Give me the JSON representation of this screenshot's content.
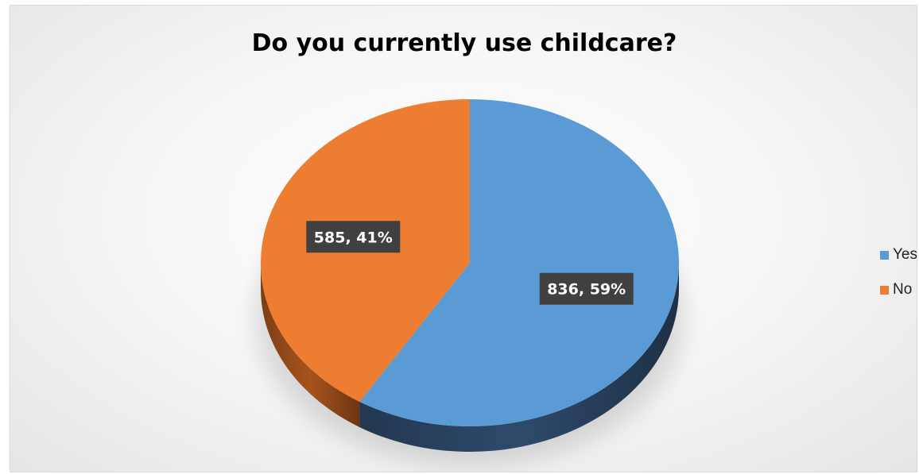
{
  "chart_data": {
    "type": "pie",
    "style": "3d",
    "title": "Do you currently use childcare?",
    "slices": [
      {
        "label": "Yes",
        "value": 836,
        "percent": 59,
        "display": "836, 59%",
        "color": "#5b9bd5",
        "side_color": "#2e4a6b"
      },
      {
        "label": "No",
        "value": 585,
        "percent": 41,
        "display": "585, 41%",
        "color": "#ed7d31",
        "side_color": "#a6531d"
      }
    ],
    "legend_position": "right"
  }
}
